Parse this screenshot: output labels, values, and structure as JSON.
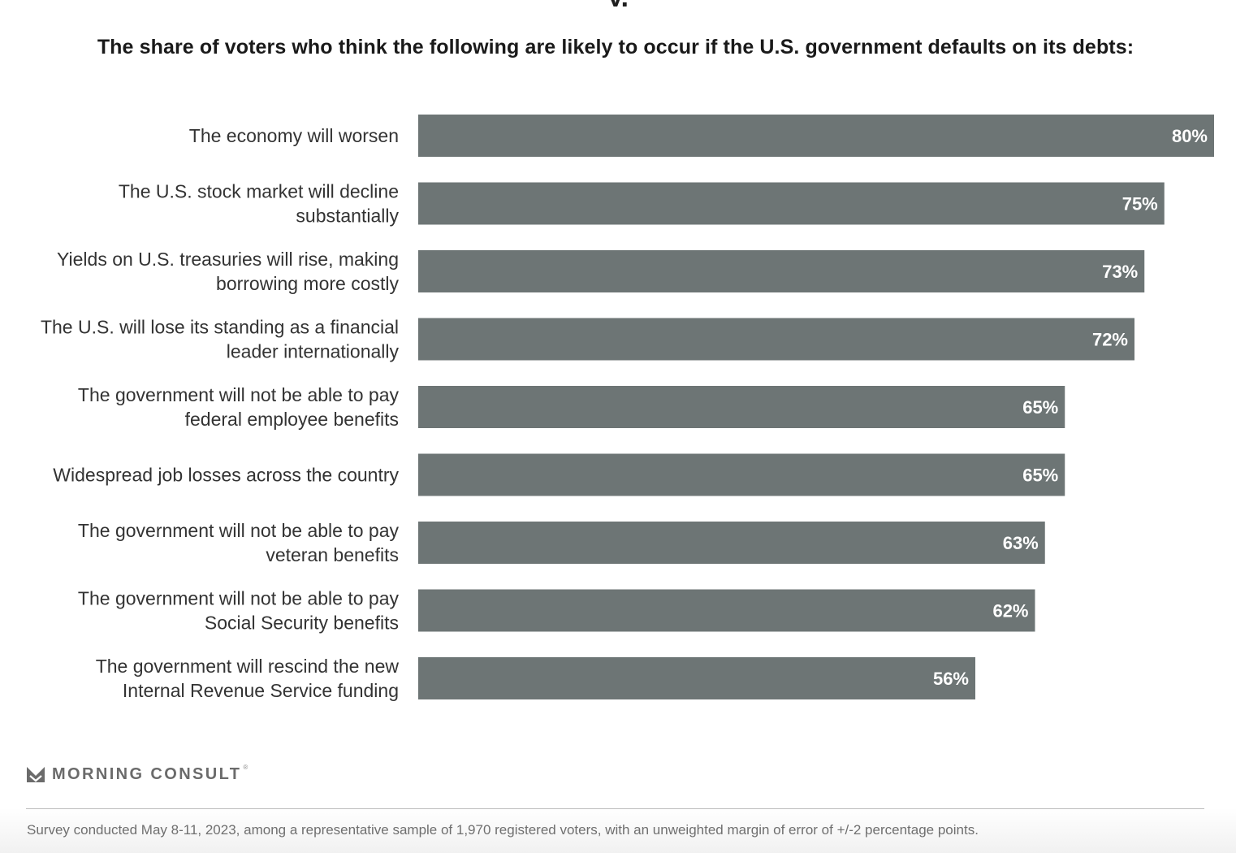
{
  "header": {
    "subtitle": "The share of voters who think the following are likely to occur if the U.S. government defaults on its debts:"
  },
  "chart_data": {
    "type": "bar",
    "orientation": "horizontal",
    "title": "The share of voters who think the following are likely to occur if the U.S. government defaults on its debts:",
    "xlabel": "",
    "ylabel": "",
    "xlim": [
      0,
      80
    ],
    "grid": false,
    "categories": [
      [
        "The economy will worsen"
      ],
      [
        "The U.S. stock market will decline",
        "substantially"
      ],
      [
        "Yields on U.S. treasuries will rise, making",
        "borrowing more costly"
      ],
      [
        "The U.S. will lose its standing as a financial",
        "leader internationally"
      ],
      [
        "The government will not be able to pay",
        "federal employee benefits"
      ],
      [
        "Widespread job losses across the country"
      ],
      [
        "The government will not be able to pay",
        "veteran benefits"
      ],
      [
        "The government will not be able to pay",
        "Social Security benefits"
      ],
      [
        "The government will rescind the new",
        "Internal Revenue Service funding"
      ]
    ],
    "values": [
      80,
      75,
      73,
      72,
      65,
      65,
      63,
      62,
      56
    ],
    "value_labels": [
      "80%",
      "75%",
      "73%",
      "72%",
      "65%",
      "65%",
      "63%",
      "62%",
      "56%"
    ],
    "bar_color": "#6d7575",
    "label_color": "#ffffff"
  },
  "branding": {
    "logo_text": "MORNING CONSULT",
    "logo_mark": "morning-consult-m-icon",
    "logo_color": "#6b6b6b"
  },
  "footer": {
    "note": "Survey conducted May 8-11, 2023, among a representative sample of 1,970 registered voters, with an unweighted margin of error of +/-2 percentage points."
  }
}
